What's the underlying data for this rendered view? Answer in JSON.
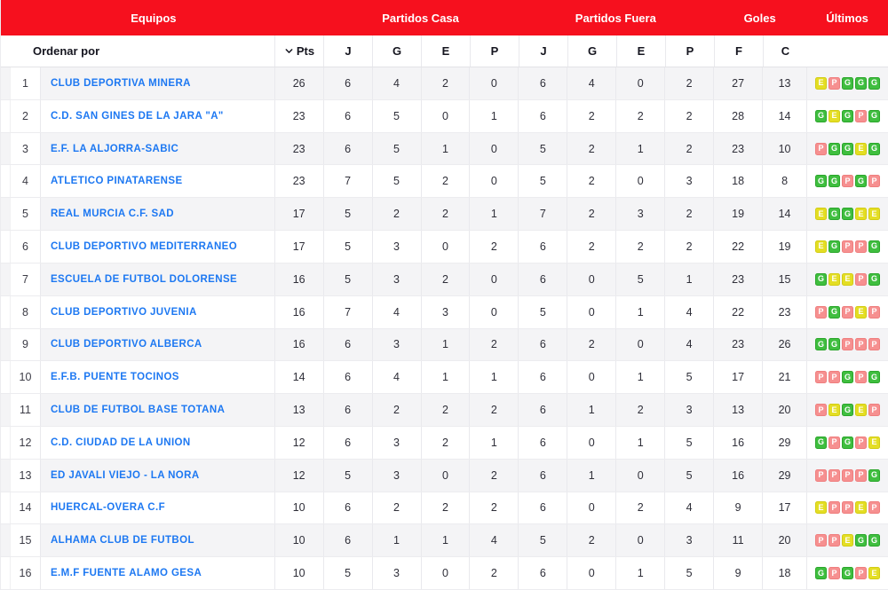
{
  "colors": {
    "brand_red": "#F6101E",
    "link_blue": "#1D78F2",
    "result_badges": {
      "G": {
        "bg": "#3FBE3F",
        "border": "#2BA62B"
      },
      "E": {
        "bg": "#E4DE24",
        "border": "#D2CC14"
      },
      "P": {
        "bg": "#F69090",
        "border": "#EF7E7E"
      }
    }
  },
  "topbar": {
    "equipos": "Equipos",
    "partidos_casa": "Partidos Casa",
    "partidos_fuera": "Partidos Fuera",
    "goles": "Goles",
    "ultimos": "Últimos"
  },
  "sort_row": {
    "label": "Ordenar por",
    "pts_label": "Pts",
    "columns": [
      "J",
      "G",
      "E",
      "P",
      "J",
      "G",
      "E",
      "P",
      "F",
      "C"
    ]
  },
  "table": {
    "rows": [
      {
        "pos": "1",
        "team": "CLUB DEPORTIVA MINERA",
        "pts": "26",
        "stats": [
          "6",
          "4",
          "2",
          "0",
          "6",
          "4",
          "0",
          "2",
          "27",
          "13"
        ],
        "last": [
          "E",
          "P",
          "G",
          "G",
          "G"
        ]
      },
      {
        "pos": "2",
        "team": "C.D. SAN GINES DE LA JARA \"A\"",
        "pts": "23",
        "stats": [
          "6",
          "5",
          "0",
          "1",
          "6",
          "2",
          "2",
          "2",
          "28",
          "14"
        ],
        "last": [
          "G",
          "E",
          "G",
          "P",
          "G"
        ]
      },
      {
        "pos": "3",
        "team": "E.F. LA ALJORRA-SABIC",
        "pts": "23",
        "stats": [
          "6",
          "5",
          "1",
          "0",
          "5",
          "2",
          "1",
          "2",
          "23",
          "10"
        ],
        "last": [
          "P",
          "G",
          "G",
          "E",
          "G"
        ]
      },
      {
        "pos": "4",
        "team": "ATLETICO PINATARENSE",
        "pts": "23",
        "stats": [
          "7",
          "5",
          "2",
          "0",
          "5",
          "2",
          "0",
          "3",
          "18",
          "8"
        ],
        "last": [
          "G",
          "G",
          "P",
          "G",
          "P"
        ]
      },
      {
        "pos": "5",
        "team": "REAL MURCIA C.F. SAD",
        "pts": "17",
        "stats": [
          "5",
          "2",
          "2",
          "1",
          "7",
          "2",
          "3",
          "2",
          "19",
          "14"
        ],
        "last": [
          "E",
          "G",
          "G",
          "E",
          "E"
        ]
      },
      {
        "pos": "6",
        "team": "CLUB DEPORTIVO MEDITERRANEO",
        "pts": "17",
        "stats": [
          "5",
          "3",
          "0",
          "2",
          "6",
          "2",
          "2",
          "2",
          "22",
          "19"
        ],
        "last": [
          "E",
          "G",
          "P",
          "P",
          "G"
        ]
      },
      {
        "pos": "7",
        "team": "ESCUELA DE FUTBOL DOLORENSE",
        "pts": "16",
        "stats": [
          "5",
          "3",
          "2",
          "0",
          "6",
          "0",
          "5",
          "1",
          "23",
          "15"
        ],
        "last": [
          "G",
          "E",
          "E",
          "P",
          "G"
        ]
      },
      {
        "pos": "8",
        "team": "CLUB DEPORTIVO JUVENIA",
        "pts": "16",
        "stats": [
          "7",
          "4",
          "3",
          "0",
          "5",
          "0",
          "1",
          "4",
          "22",
          "23"
        ],
        "last": [
          "P",
          "G",
          "P",
          "E",
          "P"
        ]
      },
      {
        "pos": "9",
        "team": "CLUB DEPORTIVO ALBERCA",
        "pts": "16",
        "stats": [
          "6",
          "3",
          "1",
          "2",
          "6",
          "2",
          "0",
          "4",
          "23",
          "26"
        ],
        "last": [
          "G",
          "G",
          "P",
          "P",
          "P"
        ]
      },
      {
        "pos": "10",
        "team": "E.F.B. PUENTE TOCINOS",
        "pts": "14",
        "stats": [
          "6",
          "4",
          "1",
          "1",
          "6",
          "0",
          "1",
          "5",
          "17",
          "21"
        ],
        "last": [
          "P",
          "P",
          "G",
          "P",
          "G"
        ]
      },
      {
        "pos": "11",
        "team": "CLUB DE FÚTBOL BASE TOTANA",
        "pts": "13",
        "stats": [
          "6",
          "2",
          "2",
          "2",
          "6",
          "1",
          "2",
          "3",
          "13",
          "20"
        ],
        "last": [
          "P",
          "E",
          "G",
          "E",
          "P"
        ]
      },
      {
        "pos": "12",
        "team": "C.D. CIUDAD DE LA UNION",
        "pts": "12",
        "stats": [
          "6",
          "3",
          "2",
          "1",
          "6",
          "0",
          "1",
          "5",
          "16",
          "29"
        ],
        "last": [
          "G",
          "P",
          "G",
          "P",
          "E"
        ]
      },
      {
        "pos": "13",
        "team": "ED JAVALÍ VIEJO - LA ÑORA",
        "pts": "12",
        "stats": [
          "5",
          "3",
          "0",
          "2",
          "6",
          "1",
          "0",
          "5",
          "16",
          "29"
        ],
        "last": [
          "P",
          "P",
          "P",
          "P",
          "G"
        ]
      },
      {
        "pos": "14",
        "team": "HUERCAL-OVERA C.F",
        "pts": "10",
        "stats": [
          "6",
          "2",
          "2",
          "2",
          "6",
          "0",
          "2",
          "4",
          "9",
          "17"
        ],
        "last": [
          "E",
          "P",
          "P",
          "E",
          "P"
        ]
      },
      {
        "pos": "15",
        "team": "ALHAMA CLUB DE FUTBOL",
        "pts": "10",
        "stats": [
          "6",
          "1",
          "1",
          "4",
          "5",
          "2",
          "0",
          "3",
          "11",
          "20"
        ],
        "last": [
          "P",
          "P",
          "E",
          "G",
          "G"
        ]
      },
      {
        "pos": "16",
        "team": "E.M.F FUENTE ÁLAMO GESA",
        "pts": "10",
        "stats": [
          "5",
          "3",
          "0",
          "2",
          "6",
          "0",
          "1",
          "5",
          "9",
          "18"
        ],
        "last": [
          "G",
          "P",
          "G",
          "P",
          "E"
        ]
      }
    ]
  }
}
